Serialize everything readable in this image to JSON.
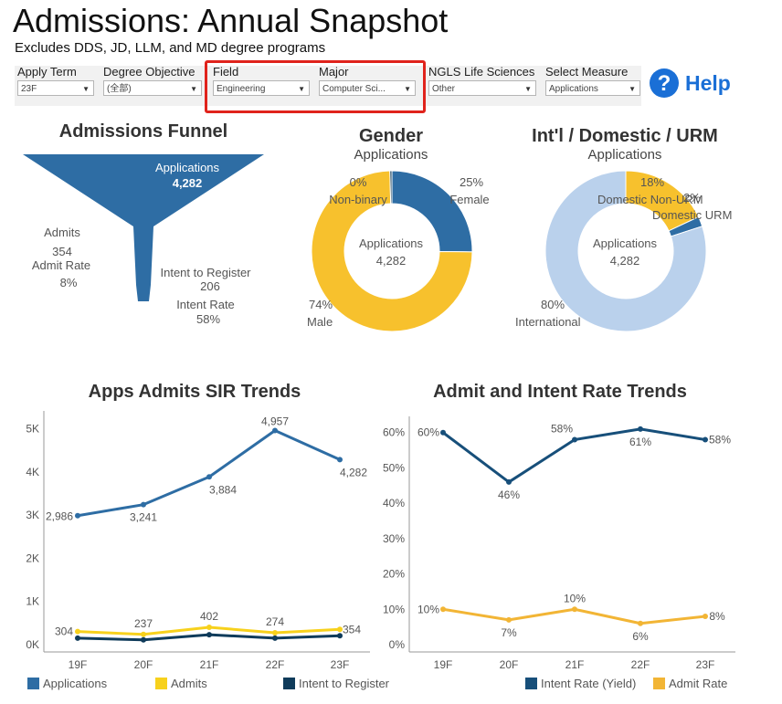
{
  "header": {
    "title": "Admissions: Annual Snapshot",
    "subtitle": "Excludes DDS, JD, LLM, and MD degree programs"
  },
  "filters": [
    {
      "label": "Apply Term",
      "value": "23F"
    },
    {
      "label": "Degree Objective",
      "value": "(全部)"
    },
    {
      "label": "Field",
      "value": "Engineering"
    },
    {
      "label": "Major",
      "value": "Computer Sci..."
    },
    {
      "label": "NGLS Life Sciences",
      "value": "Other"
    },
    {
      "label": "Select Measure",
      "value": "Applications"
    }
  ],
  "help": {
    "label": "Help",
    "icon": "question-circle-icon"
  },
  "funnel": {
    "title": "Admissions Funnel",
    "applications_label": "Applications",
    "applications_value": "4,282",
    "admits_label": "Admits",
    "admits_value": "354",
    "admit_rate_label": "Admit Rate",
    "admit_rate_value": "8%",
    "intent_label": "Intent to Register",
    "intent_value": "206",
    "intent_rate_label": "Intent Rate",
    "intent_rate_value": "58%",
    "color": "#2e6da4"
  },
  "gender": {
    "title": "Gender",
    "subtitle": "Applications",
    "center_label": "Applications",
    "center_value": "4,282",
    "slices": [
      {
        "label": "Female",
        "pct": "25%",
        "value": 25,
        "color": "#2e6da4"
      },
      {
        "label": "Male",
        "pct": "74%",
        "value": 74,
        "color": "#f7c12d"
      },
      {
        "label": "Non-binary",
        "pct": "0%",
        "value": 0.4,
        "color": "#0f3b5a"
      }
    ]
  },
  "intl": {
    "title": "Int'l / Domestic / URM",
    "subtitle": "Applications",
    "center_label": "Applications",
    "center_value": "4,282",
    "slices": [
      {
        "label": "Domestic Non-URM",
        "pct": "18%",
        "value": 18,
        "color": "#f7c12d"
      },
      {
        "label": "Domestic URM",
        "pct": "2%",
        "value": 2,
        "color": "#2e6da4"
      },
      {
        "label": "International",
        "pct": "80%",
        "value": 80,
        "color": "#bad1ec"
      }
    ]
  },
  "chart_data": [
    {
      "type": "line",
      "title": "Apps Admits SIR Trends",
      "categories": [
        "19F",
        "20F",
        "21F",
        "22F",
        "23F"
      ],
      "ylim": [
        0,
        5200
      ],
      "yticks": [
        "0K",
        "1K",
        "2K",
        "3K",
        "4K",
        "5K"
      ],
      "series": [
        {
          "name": "Applications",
          "values": [
            2986,
            3241,
            3884,
            4957,
            4282
          ],
          "labels": [
            "2,986",
            "3,241",
            "3,884",
            "4,957",
            "4,282"
          ],
          "color": "#2e6da4"
        },
        {
          "name": "Admits",
          "values": [
            304,
            237,
            402,
            274,
            354
          ],
          "labels": [
            "304",
            "237",
            "402",
            "274",
            "354"
          ],
          "color": "#f7d11c"
        },
        {
          "name": "Intent to Register",
          "values": [
            150,
            110,
            230,
            150,
            206
          ],
          "labels": [],
          "color": "#0f3b5a"
        }
      ]
    },
    {
      "type": "line",
      "title": "Admit and Intent Rate Trends",
      "categories": [
        "19F",
        "20F",
        "21F",
        "22F",
        "23F"
      ],
      "ylim": [
        0,
        62
      ],
      "yticks": [
        "0%",
        "10%",
        "20%",
        "30%",
        "40%",
        "50%",
        "60%"
      ],
      "series": [
        {
          "name": "Intent Rate (Yield)",
          "values": [
            60,
            46,
            58,
            61,
            58
          ],
          "labels": [
            "60%",
            "46%",
            "58%",
            "61%",
            "58%"
          ],
          "color": "#174f7a"
        },
        {
          "name": "Admit Rate",
          "values": [
            10,
            7,
            10,
            6,
            8
          ],
          "labels": [
            "10%",
            "7%",
            "10%",
            "6%",
            "8%"
          ],
          "color": "#f2b535"
        }
      ]
    }
  ]
}
